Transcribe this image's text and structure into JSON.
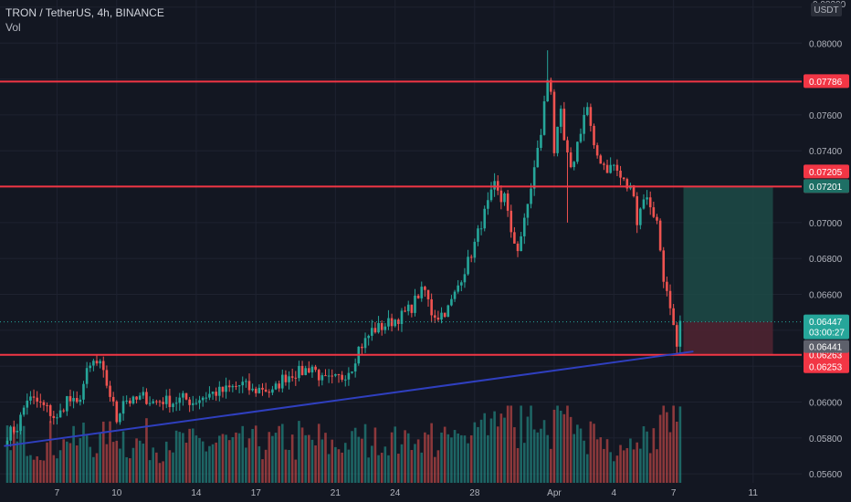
{
  "header": {
    "symbol": "TRON / TetherUS, 4h, BINANCE",
    "indicator": "Vol"
  },
  "price_axis": {
    "currency": "USDT",
    "top_label": "0.08200"
  },
  "colors": {
    "background": "#131722",
    "grid": "#1e2230",
    "up": "#26a69a",
    "down": "#ef5350",
    "level_line": "#f23645",
    "trendline": "#2f3fbf",
    "target_zone": "#1d4b46",
    "stop_zone": "#4e2431"
  },
  "chart_data": {
    "type": "candlestick",
    "title": "TRON / TetherUS, 4h, BINANCE",
    "ylim": [
      0.0555,
      0.0822
    ],
    "y_ticks": [
      "0.08200",
      "0.08000",
      "0.07800",
      "0.07600",
      "0.07400",
      "0.07200",
      "0.07000",
      "0.06800",
      "0.06600",
      "0.06400",
      "0.06200",
      "0.06000",
      "0.05800",
      "0.05600"
    ],
    "x_ticks": [
      {
        "label": "7",
        "bar": 15
      },
      {
        "label": "10",
        "bar": 33
      },
      {
        "label": "14",
        "bar": 57
      },
      {
        "label": "17",
        "bar": 75
      },
      {
        "label": "21",
        "bar": 99
      },
      {
        "label": "24",
        "bar": 117
      },
      {
        "label": "28",
        "bar": 141
      },
      {
        "label": "Apr",
        "bar": 165
      },
      {
        "label": "4",
        "bar": 183
      },
      {
        "label": "7",
        "bar": 201
      },
      {
        "label": "11",
        "bar": 225
      }
    ],
    "x_bar_range": [
      0,
      240
    ],
    "bars_total": 204,
    "anchors": [
      [
        0,
        0.0582
      ],
      [
        3,
        0.0586
      ],
      [
        6,
        0.0602
      ],
      [
        9,
        0.06
      ],
      [
        12,
        0.0596
      ],
      [
        15,
        0.059
      ],
      [
        18,
        0.0602
      ],
      [
        21,
        0.0598
      ],
      [
        24,
        0.0616
      ],
      [
        26,
        0.0622
      ],
      [
        28,
        0.062
      ],
      [
        30,
        0.061
      ],
      [
        32,
        0.0598
      ],
      [
        33,
        0.059
      ],
      [
        35,
        0.0602
      ],
      [
        38,
        0.06
      ],
      [
        41,
        0.0603
      ],
      [
        44,
        0.06
      ],
      [
        47,
        0.0601
      ],
      [
        50,
        0.06
      ],
      [
        53,
        0.0602
      ],
      [
        56,
        0.06
      ],
      [
        59,
        0.0603
      ],
      [
        62,
        0.0605
      ],
      [
        65,
        0.0606
      ],
      [
        68,
        0.0608
      ],
      [
        71,
        0.061
      ],
      [
        74,
        0.0606
      ],
      [
        77,
        0.0608
      ],
      [
        80,
        0.0605
      ],
      [
        83,
        0.0613
      ],
      [
        86,
        0.0616
      ],
      [
        89,
        0.0617
      ],
      [
        92,
        0.062
      ],
      [
        95,
        0.0612
      ],
      [
        98,
        0.0612
      ],
      [
        101,
        0.0614
      ],
      [
        104,
        0.062
      ],
      [
        106,
        0.063
      ],
      [
        108,
        0.0634
      ],
      [
        110,
        0.064
      ],
      [
        113,
        0.0642
      ],
      [
        116,
        0.0645
      ],
      [
        119,
        0.0648
      ],
      [
        122,
        0.0653
      ],
      [
        124,
        0.066
      ],
      [
        126,
        0.0662
      ],
      [
        128,
        0.065
      ],
      [
        130,
        0.0648
      ],
      [
        133,
        0.0652
      ],
      [
        135,
        0.066
      ],
      [
        137,
        0.067
      ],
      [
        139,
        0.0678
      ],
      [
        141,
        0.0688
      ],
      [
        143,
        0.07
      ],
      [
        145,
        0.071
      ],
      [
        147,
        0.072
      ],
      [
        149,
        0.0712
      ],
      [
        150,
        0.0718
      ],
      [
        152,
        0.0692
      ],
      [
        154,
        0.0686
      ],
      [
        156,
        0.07
      ],
      [
        158,
        0.072
      ],
      [
        160,
        0.074
      ],
      [
        161,
        0.075
      ],
      [
        162,
        0.0766
      ],
      [
        163,
        0.078
      ],
      [
        164,
        0.0775
      ],
      [
        165,
        0.074
      ],
      [
        167,
        0.076
      ],
      [
        168,
        0.0745
      ],
      [
        170,
        0.0728
      ],
      [
        172,
        0.0744
      ],
      [
        174,
        0.076
      ],
      [
        175,
        0.0764
      ],
      [
        177,
        0.074
      ],
      [
        179,
        0.0735
      ],
      [
        181,
        0.073
      ],
      [
        183,
        0.0732
      ],
      [
        185,
        0.0725
      ],
      [
        187,
        0.072
      ],
      [
        189,
        0.0718
      ],
      [
        190,
        0.07
      ],
      [
        192,
        0.0715
      ],
      [
        194,
        0.071
      ],
      [
        196,
        0.07
      ],
      [
        197,
        0.0685
      ],
      [
        198,
        0.067
      ],
      [
        199,
        0.066
      ],
      [
        200,
        0.065
      ],
      [
        201,
        0.064
      ],
      [
        202,
        0.0628
      ],
      [
        203,
        0.0644
      ]
    ],
    "current_price": 0.06447,
    "current_price_label": "0.06447",
    "countdown_label": "03:00:27",
    "last_close_label": "0.06441",
    "levels": [
      {
        "value": 0.07786,
        "label": "0.07786"
      },
      {
        "value": 0.07201,
        "label": "0.07201",
        "secondary_value": 0.07205,
        "secondary_label": "0.07205"
      },
      {
        "value": 0.06263,
        "label": "0.06263",
        "secondary_value": 0.06253,
        "secondary_label": "0.06253"
      }
    ],
    "trendline": {
      "from": {
        "bar": -1,
        "price": 0.05755
      },
      "to": {
        "bar": 207,
        "price": 0.06282
      }
    },
    "position": {
      "start_bar": 204,
      "end_bar": 231,
      "entry": 0.06447,
      "target": 0.07201,
      "stop": 0.06263
    },
    "volume": {
      "max_share_of_pane": 0.22
    }
  }
}
